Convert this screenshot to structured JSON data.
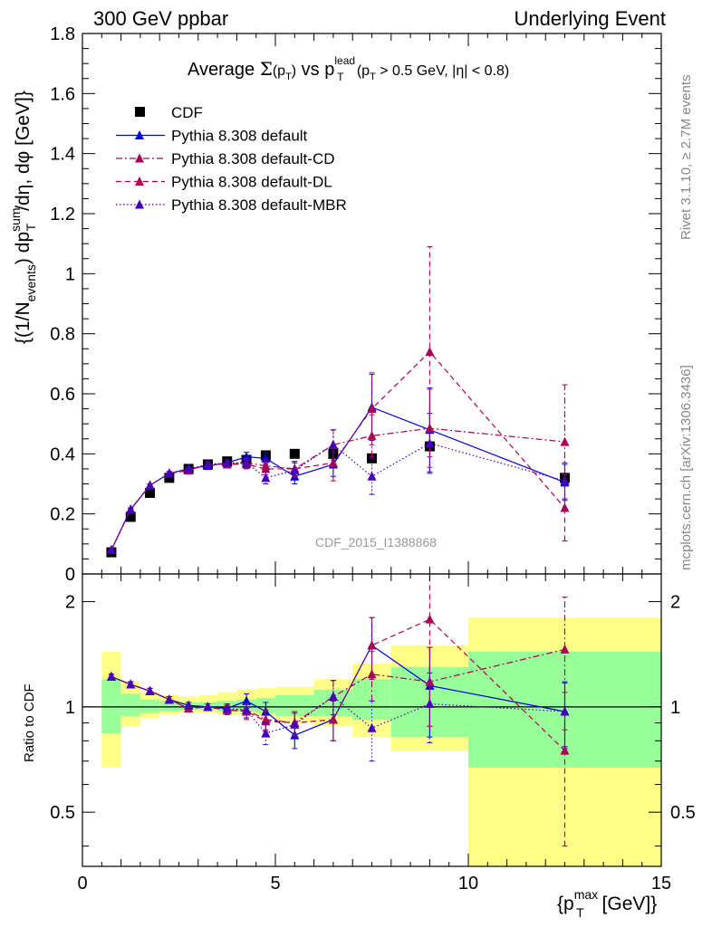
{
  "header": {
    "left": "300 GeV ppbar",
    "right": "Underlying Event"
  },
  "side_text": {
    "rivet": "Rivet 3.1.10, ≥ 2.7M events",
    "source": "mcplots.cern.ch [arXiv:1306.3436]"
  },
  "chart_data": [
    {
      "type": "scatter",
      "panel": "main",
      "title": "Average Σ(p_T) vs p_T^lead (p_T > 0.5 GeV, |η| < 0.8)",
      "ylabel": "{(1/N_events) dp_T^sum/dη, dφ [GeV]}",
      "watermark": "CDF_2015_I1388868",
      "xlim": [
        0,
        15
      ],
      "ylim": [
        0,
        1.8
      ],
      "xticks": [
        0,
        5,
        10,
        15
      ],
      "yticks": [
        0,
        0.2,
        0.4,
        0.6,
        0.8,
        1,
        1.2,
        1.4,
        1.6,
        1.8
      ],
      "legend_position": "top-left",
      "series": [
        {
          "name": "CDF",
          "color": "#000000",
          "marker": "square",
          "line": "none",
          "x": [
            0.75,
            1.25,
            1.75,
            2.25,
            2.75,
            3.25,
            3.75,
            4.25,
            4.75,
            5.5,
            6.5,
            7.5,
            9.0,
            12.5
          ],
          "y": [
            0.072,
            0.19,
            0.27,
            0.32,
            0.35,
            0.365,
            0.375,
            0.38,
            0.395,
            0.4,
            0.4,
            0.385,
            0.425,
            0.32
          ]
        },
        {
          "name": "Pythia 8.308 default",
          "color": "#0000dd",
          "marker": "triangle",
          "line": "solid",
          "x": [
            0.75,
            1.25,
            1.75,
            2.25,
            2.75,
            3.25,
            3.75,
            4.25,
            4.75,
            5.5,
            6.5,
            7.5,
            9.0,
            12.5
          ],
          "y": [
            0.08,
            0.215,
            0.295,
            0.335,
            0.35,
            0.36,
            0.37,
            0.39,
            0.385,
            0.325,
            0.365,
            0.555,
            0.48,
            0.305
          ],
          "err": [
            0.003,
            0.004,
            0.005,
            0.006,
            0.007,
            0.008,
            0.01,
            0.015,
            0.02,
            0.025,
            0.04,
            0.11,
            0.14,
            0.06
          ]
        },
        {
          "name": "Pythia 8.308 default-CD",
          "color": "#aa0055",
          "marker": "triangle",
          "line": "dashdot",
          "x": [
            0.75,
            1.25,
            1.75,
            2.25,
            2.75,
            3.25,
            3.75,
            4.25,
            4.75,
            5.5,
            6.5,
            7.5,
            9.0,
            12.5
          ],
          "y": [
            0.08,
            0.215,
            0.295,
            0.335,
            0.345,
            0.365,
            0.365,
            0.37,
            0.36,
            0.35,
            0.43,
            0.46,
            0.485,
            0.44
          ],
          "err": [
            0.003,
            0.004,
            0.005,
            0.006,
            0.007,
            0.008,
            0.01,
            0.015,
            0.02,
            0.025,
            0.05,
            0.07,
            0.13,
            0.19
          ]
        },
        {
          "name": "Pythia 8.308 default-DL",
          "color": "#aa0055",
          "marker": "triangle",
          "line": "dashed",
          "x": [
            0.75,
            1.25,
            1.75,
            2.25,
            2.75,
            3.25,
            3.75,
            4.25,
            4.75,
            5.5,
            6.5,
            7.5,
            9.0,
            12.5
          ],
          "y": [
            0.08,
            0.215,
            0.295,
            0.335,
            0.345,
            0.365,
            0.365,
            0.365,
            0.35,
            0.35,
            0.37,
            0.55,
            0.74,
            0.22
          ],
          "err": [
            0.003,
            0.004,
            0.005,
            0.006,
            0.007,
            0.008,
            0.01,
            0.015,
            0.02,
            0.025,
            0.06,
            0.12,
            0.35,
            0.11
          ]
        },
        {
          "name": "Pythia 8.308 default-MBR",
          "color": "#4400bb",
          "marker": "triangle",
          "line": "dotted",
          "x": [
            0.75,
            1.25,
            1.75,
            2.25,
            2.75,
            3.25,
            3.75,
            4.25,
            4.75,
            5.5,
            6.5,
            7.5,
            9.0,
            12.5
          ],
          "y": [
            0.08,
            0.215,
            0.295,
            0.335,
            0.35,
            0.365,
            0.37,
            0.37,
            0.32,
            0.345,
            0.43,
            0.325,
            0.435,
            0.31
          ],
          "err": [
            0.003,
            0.004,
            0.005,
            0.006,
            0.007,
            0.008,
            0.01,
            0.015,
            0.02,
            0.025,
            0.05,
            0.06,
            0.1,
            0.06
          ]
        }
      ]
    },
    {
      "type": "scatter",
      "panel": "ratio",
      "ylabel": "Ratio to CDF",
      "xlabel": "{p_T^max [GeV]}",
      "xlim": [
        0,
        15
      ],
      "ylim": [
        0.35,
        2.4
      ],
      "xticks": [
        0,
        5,
        10,
        15
      ],
      "yticks": [
        0.5,
        1,
        2
      ],
      "bands": {
        "edges": [
          0.5,
          1.0,
          1.5,
          2.0,
          2.5,
          3.0,
          3.5,
          4.0,
          4.5,
          5.0,
          6.0,
          7.0,
          8.0,
          10.0,
          15.0
        ],
        "outer_color": "#ffff88",
        "inner_color": "#99ff99",
        "outer_low": [
          0.67,
          0.88,
          0.93,
          0.95,
          0.96,
          0.96,
          0.95,
          0.95,
          0.94,
          0.9,
          0.88,
          0.82,
          0.75,
          0.31
        ],
        "outer_high": [
          1.44,
          1.18,
          1.1,
          1.08,
          1.07,
          1.08,
          1.1,
          1.12,
          1.13,
          1.14,
          1.2,
          1.33,
          1.5,
          1.8
        ],
        "inner_low": [
          0.84,
          0.94,
          0.96,
          0.97,
          0.98,
          0.98,
          0.97,
          0.97,
          0.96,
          0.94,
          0.94,
          0.92,
          0.82,
          0.67
        ],
        "inner_high": [
          1.2,
          1.09,
          1.05,
          1.04,
          1.03,
          1.03,
          1.04,
          1.05,
          1.06,
          1.08,
          1.12,
          1.2,
          1.3,
          1.44
        ]
      },
      "series": [
        {
          "name": "Pythia 8.308 default",
          "color": "#0000dd",
          "line": "solid",
          "x": [
            0.75,
            1.25,
            1.75,
            2.25,
            2.75,
            3.25,
            3.75,
            4.25,
            4.75,
            5.5,
            6.5,
            7.5,
            9.0,
            12.5
          ],
          "y": [
            1.22,
            1.16,
            1.11,
            1.05,
            1.01,
            1.0,
            0.99,
            1.04,
            0.97,
            0.83,
            0.92,
            1.5,
            1.15,
            0.97
          ],
          "err": [
            0.02,
            0.02,
            0.02,
            0.02,
            0.02,
            0.02,
            0.03,
            0.05,
            0.06,
            0.07,
            0.12,
            0.3,
            0.33,
            0.21
          ]
        },
        {
          "name": "Pythia 8.308 default-CD",
          "color": "#aa0055",
          "line": "dashdot",
          "x": [
            0.75,
            1.25,
            1.75,
            2.25,
            2.75,
            3.25,
            3.75,
            4.25,
            4.75,
            5.5,
            6.5,
            7.5,
            9.0,
            12.5
          ],
          "y": [
            1.22,
            1.16,
            1.11,
            1.05,
            0.99,
            1.0,
            0.98,
            0.98,
            0.92,
            0.9,
            1.07,
            1.24,
            1.18,
            1.46
          ],
          "err": [
            0.02,
            0.02,
            0.02,
            0.02,
            0.02,
            0.02,
            0.03,
            0.05,
            0.06,
            0.07,
            0.12,
            0.2,
            0.3,
            0.6
          ]
        },
        {
          "name": "Pythia 8.308 default-DL",
          "color": "#aa0055",
          "line": "dashed",
          "x": [
            0.75,
            1.25,
            1.75,
            2.25,
            2.75,
            3.25,
            3.75,
            4.25,
            4.75,
            5.5,
            6.5,
            7.5,
            9.0,
            12.5
          ],
          "y": [
            1.22,
            1.16,
            1.11,
            1.05,
            0.99,
            1.0,
            0.98,
            0.97,
            0.91,
            0.9,
            0.92,
            1.5,
            1.78,
            0.75
          ],
          "err": [
            0.02,
            0.02,
            0.02,
            0.02,
            0.02,
            0.02,
            0.03,
            0.05,
            0.06,
            0.07,
            0.12,
            0.3,
            0.9,
            0.35
          ]
        },
        {
          "name": "Pythia 8.308 default-MBR",
          "color": "#4400bb",
          "line": "dotted",
          "x": [
            0.75,
            1.25,
            1.75,
            2.25,
            2.75,
            3.25,
            3.75,
            4.25,
            4.75,
            5.5,
            6.5,
            7.5,
            9.0,
            12.5
          ],
          "y": [
            1.22,
            1.16,
            1.11,
            1.05,
            1.01,
            1.0,
            0.99,
            0.98,
            0.84,
            0.89,
            1.07,
            0.87,
            1.02,
            0.97
          ],
          "err": [
            0.02,
            0.02,
            0.02,
            0.02,
            0.02,
            0.02,
            0.03,
            0.05,
            0.06,
            0.07,
            0.12,
            0.17,
            0.23,
            0.2
          ]
        }
      ]
    }
  ]
}
